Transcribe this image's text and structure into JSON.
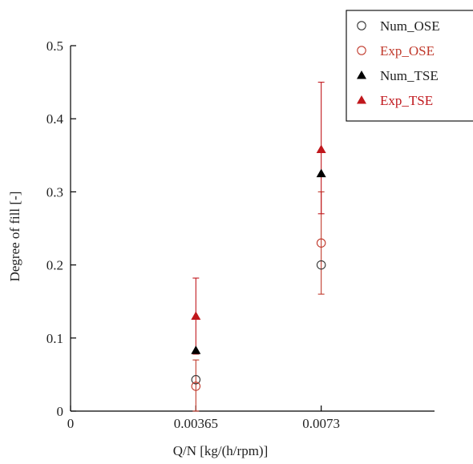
{
  "chart_data": {
    "type": "scatter",
    "title": "",
    "xlabel": "Q/N [kg/(h/rpm)]",
    "ylabel": "Degree of fill [-]",
    "xlim": [
      0,
      0.0106
    ],
    "ylim": [
      0,
      0.5
    ],
    "xticks": [
      0,
      0.00365,
      0.0073
    ],
    "xtick_labels": [
      "0",
      "0.00365",
      "0.0073"
    ],
    "yticks": [
      0,
      0.1,
      0.2,
      0.3,
      0.4,
      0.5
    ],
    "ytick_labels": [
      "0",
      "0.1",
      "0.2",
      "0.3",
      "0.4",
      "0.5"
    ],
    "grid": false,
    "legend_position": "top-right",
    "series": [
      {
        "name": "Num_OSE",
        "marker": "open-circle",
        "color": "#333333",
        "points": [
          {
            "x": 0.00365,
            "y": 0.043
          },
          {
            "x": 0.0073,
            "y": 0.2
          }
        ]
      },
      {
        "name": "Exp_OSE",
        "marker": "open-circle",
        "color": "#c0392b",
        "points": [
          {
            "x": 0.00365,
            "y": 0.034
          },
          {
            "x": 0.0073,
            "y": 0.23
          }
        ],
        "error_bars": [
          {
            "low": 0.0,
            "high": 0.07
          },
          {
            "low": 0.16,
            "high": 0.3
          }
        ]
      },
      {
        "name": "Num_TSE",
        "marker": "filled-triangle",
        "color": "#000000",
        "points": [
          {
            "x": 0.00365,
            "y": 0.083
          },
          {
            "x": 0.0073,
            "y": 0.325
          }
        ]
      },
      {
        "name": "Exp_TSE",
        "marker": "filled-triangle",
        "color": "#c0171c",
        "points": [
          {
            "x": 0.00365,
            "y": 0.13
          },
          {
            "x": 0.0073,
            "y": 0.358
          }
        ],
        "error_bars": [
          {
            "low": 0.078,
            "high": 0.182
          },
          {
            "low": 0.27,
            "high": 0.45
          }
        ]
      }
    ]
  }
}
